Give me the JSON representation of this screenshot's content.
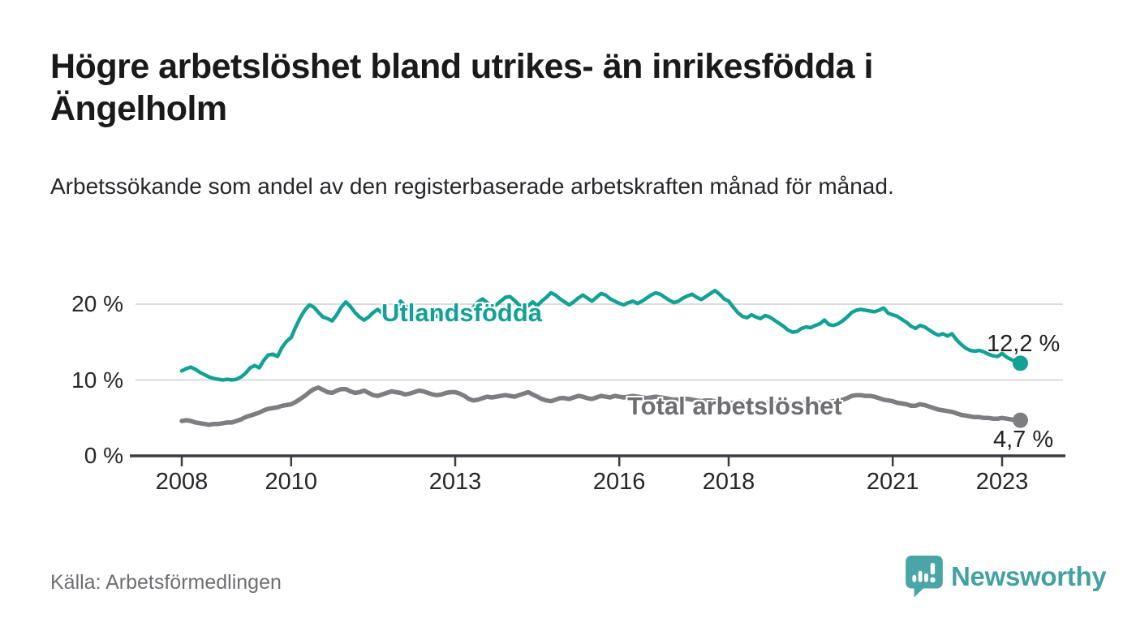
{
  "header": {
    "title": "Högre arbetslöshet bland utrikes- än inrikesfödda i Ängelholm",
    "subtitle": "Arbetssökande som andel av den registerbaserade arbetskraften månad för månad."
  },
  "chart_data": {
    "type": "line",
    "title": "Högre arbetslöshet bland utrikes- än inrikesfödda i Ängelholm",
    "subtitle": "Arbetssökande som andel av den registerbaserade arbetskraften månad för månad.",
    "x_start": "2008-01",
    "frequency": "monthly",
    "xlabel": "",
    "ylabel": "",
    "ylim": [
      0,
      23.5
    ],
    "grid": "horizontal",
    "legend": "inline-labels",
    "y_ticks": [
      {
        "label": "0 %",
        "value": 0
      },
      {
        "label": "10 %",
        "value": 10
      },
      {
        "label": "20 %",
        "value": 20
      }
    ],
    "x_ticks": [
      {
        "label": "2008",
        "year": 2008
      },
      {
        "label": "2010",
        "year": 2010
      },
      {
        "label": "2013",
        "year": 2013
      },
      {
        "label": "2016",
        "year": 2016
      },
      {
        "label": "2018",
        "year": 2018
      },
      {
        "label": "2021",
        "year": 2021
      },
      {
        "label": "2023",
        "year": 2023
      }
    ],
    "series": [
      {
        "name": "Utlandsfödda",
        "color": "#12A295",
        "end_label": "12,2 %",
        "end_value": 12.2,
        "values": [
          11.2,
          11.5,
          11.7,
          11.4,
          11.0,
          10.7,
          10.4,
          10.2,
          10.1,
          10.0,
          10.1,
          10.0,
          10.1,
          10.4,
          10.9,
          11.6,
          11.9,
          11.6,
          12.6,
          13.3,
          13.4,
          13.1,
          14.3,
          15.1,
          15.6,
          17.0,
          18.2,
          19.2,
          19.9,
          19.6,
          18.9,
          18.3,
          18.1,
          17.8,
          18.6,
          19.6,
          20.3,
          19.7,
          18.9,
          18.3,
          17.9,
          18.3,
          18.9,
          19.3,
          18.8,
          18.2,
          17.7,
          18.9,
          20.4,
          19.8,
          19.2,
          18.8,
          18.4,
          18.7,
          19.1,
          18.8,
          18.4,
          18.1,
          18.5,
          19.0,
          19.4,
          19.0,
          18.6,
          18.9,
          19.6,
          20.3,
          20.7,
          20.2,
          19.7,
          19.9,
          20.4,
          20.9,
          21.0,
          20.5,
          19.9,
          19.5,
          19.8,
          20.3,
          19.8,
          20.4,
          20.9,
          21.5,
          21.2,
          20.7,
          20.3,
          19.9,
          20.3,
          20.8,
          21.2,
          20.8,
          20.4,
          20.9,
          21.4,
          21.2,
          20.7,
          20.4,
          20.1,
          19.9,
          20.2,
          20.4,
          20.1,
          20.4,
          20.8,
          21.2,
          21.5,
          21.3,
          20.9,
          20.5,
          20.2,
          20.4,
          20.8,
          21.1,
          21.3,
          20.9,
          20.6,
          21.0,
          21.4,
          21.8,
          21.3,
          20.7,
          20.4,
          19.6,
          18.9,
          18.4,
          18.2,
          18.6,
          18.3,
          18.1,
          18.5,
          18.3,
          17.9,
          17.5,
          17.1,
          16.6,
          16.3,
          16.4,
          16.8,
          17.0,
          16.9,
          17.2,
          17.4,
          17.9,
          17.3,
          17.2,
          17.4,
          17.8,
          18.3,
          18.9,
          19.2,
          19.3,
          19.2,
          19.1,
          19.0,
          19.2,
          19.5,
          18.8,
          18.6,
          18.4,
          18.0,
          17.6,
          17.1,
          16.8,
          17.2,
          17.0,
          16.6,
          16.2,
          15.9,
          16.1,
          15.8,
          16.1,
          15.3,
          14.7,
          14.2,
          13.9,
          13.8,
          13.9,
          13.7,
          13.4,
          13.2,
          13.1,
          13.5,
          13.0,
          12.7,
          12.4,
          12.2
        ]
      },
      {
        "name": "Total arbetslöshet",
        "color": "#7E7E82",
        "end_label": "4,7 %",
        "end_value": 4.7,
        "values": [
          4.6,
          4.7,
          4.6,
          4.4,
          4.3,
          4.2,
          4.1,
          4.2,
          4.2,
          4.3,
          4.4,
          4.4,
          4.6,
          4.8,
          5.1,
          5.3,
          5.5,
          5.7,
          6.0,
          6.2,
          6.3,
          6.4,
          6.6,
          6.7,
          6.8,
          7.1,
          7.5,
          7.9,
          8.4,
          8.8,
          9.0,
          8.7,
          8.4,
          8.3,
          8.6,
          8.8,
          8.8,
          8.5,
          8.3,
          8.4,
          8.6,
          8.3,
          8.0,
          7.9,
          8.1,
          8.3,
          8.5,
          8.4,
          8.3,
          8.1,
          8.2,
          8.4,
          8.6,
          8.5,
          8.3,
          8.1,
          8.0,
          8.1,
          8.3,
          8.4,
          8.4,
          8.2,
          7.9,
          7.5,
          7.3,
          7.4,
          7.6,
          7.8,
          7.7,
          7.8,
          7.9,
          8.0,
          7.9,
          7.8,
          8.0,
          8.2,
          8.4,
          8.1,
          7.8,
          7.5,
          7.3,
          7.2,
          7.4,
          7.6,
          7.6,
          7.5,
          7.7,
          7.9,
          7.8,
          7.6,
          7.5,
          7.7,
          7.9,
          7.8,
          7.7,
          7.9,
          7.8,
          7.7,
          7.8,
          7.9,
          7.8,
          7.7,
          7.6,
          7.7,
          7.8,
          7.7,
          7.6,
          7.5,
          7.4,
          7.4,
          7.5,
          7.5,
          7.4,
          7.3,
          7.2,
          7.3,
          7.3,
          7.2,
          7.1,
          7.1,
          7.0,
          7.0,
          7.1,
          7.1,
          7.0,
          6.9,
          6.9,
          7.0,
          7.0,
          6.9,
          6.9,
          6.8,
          6.8,
          6.8,
          6.9,
          6.9,
          7.0,
          7.0,
          7.1,
          7.1,
          7.0,
          7.0,
          7.1,
          7.2,
          7.3,
          7.4,
          7.6,
          7.9,
          8.0,
          8.0,
          7.9,
          7.9,
          7.8,
          7.6,
          7.4,
          7.3,
          7.2,
          7.0,
          6.9,
          6.8,
          6.6,
          6.6,
          6.8,
          6.7,
          6.5,
          6.3,
          6.1,
          6.0,
          5.9,
          5.8,
          5.6,
          5.4,
          5.3,
          5.2,
          5.1,
          5.1,
          5.0,
          5.0,
          4.9,
          4.9,
          5.0,
          4.9,
          4.8,
          4.7,
          4.7
        ]
      }
    ]
  },
  "footer": {
    "source": "Källa: Arbetsförmedlingen",
    "brand": "Newsworthy"
  },
  "colors": {
    "accent_teal": "#12A295",
    "line_gray": "#7E7E82",
    "gray_label": "#6E6E73",
    "brand_teal": "#43A1A4",
    "axis": "#3B3B40",
    "gridline": "#DADADA",
    "title_text": "#1A1A1A",
    "body_text": "#26262B",
    "muted_text": "#6F6F73"
  }
}
